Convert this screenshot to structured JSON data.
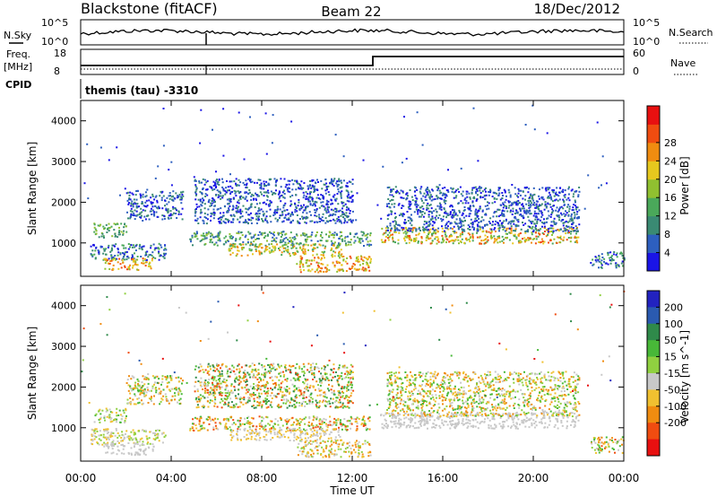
{
  "header": {
    "title": "Blackstone (fitACF)",
    "beam": "Beam 22",
    "date": "18/Dec/2012"
  },
  "top_panels": {
    "noise": {
      "left_label": "N.Sky",
      "right_label": "N.Search",
      "left_ticks": [
        "10^5",
        "10^0"
      ],
      "right_ticks": [
        "10^5",
        "10^0"
      ]
    },
    "frequency": {
      "left_label": "Freq.",
      "left_unit": "[MHz]",
      "right_label": "Nave",
      "left_ticks": [
        "18",
        "8"
      ],
      "right_ticks": [
        "60",
        "0"
      ]
    },
    "cpid": {
      "label": "CPID",
      "program": "themis (tau) -3310"
    }
  },
  "chart_data": [
    {
      "type": "heatmap",
      "panel": "power",
      "ylabel": "Slant Range [km]",
      "xlabel": "",
      "ylim": [
        180,
        4500
      ],
      "yticks": [
        1000,
        2000,
        3000,
        4000
      ],
      "xticks": [
        "00:00",
        "04:00",
        "08:00",
        "12:00",
        "16:00",
        "20:00",
        "00:00"
      ],
      "xlim_hours": [
        0,
        24
      ],
      "colorbar": {
        "label": "Power [dB]",
        "ticks": [
          "4",
          "8",
          "12",
          "16",
          "20",
          "24",
          "28"
        ],
        "colors": [
          "#1a14e6",
          "#2d5fbf",
          "#3a8a73",
          "#4aa85a",
          "#90c030",
          "#e6c81e",
          "#f08c10",
          "#f04c10",
          "#e81010"
        ]
      },
      "scatter_regions": [
        {
          "t": [
            0.5,
            2.0
          ],
          "r": [
            1150,
            1500
          ],
          "v": [
            2,
            4
          ]
        },
        {
          "t": [
            0.4,
            3.8
          ],
          "r": [
            600,
            1000
          ],
          "v": [
            0,
            3
          ]
        },
        {
          "t": [
            1.0,
            3.2
          ],
          "r": [
            350,
            650
          ],
          "v": [
            4,
            7
          ]
        },
        {
          "t": [
            2.0,
            4.5
          ],
          "r": [
            1600,
            2300
          ],
          "v": [
            0,
            2
          ]
        },
        {
          "t": [
            4.8,
            12.8
          ],
          "r": [
            950,
            1300
          ],
          "v": [
            1,
            4
          ]
        },
        {
          "t": [
            6.5,
            11.5
          ],
          "r": [
            700,
            1000
          ],
          "v": [
            3,
            6
          ]
        },
        {
          "t": [
            9.5,
            12.8
          ],
          "r": [
            300,
            700
          ],
          "v": [
            4,
            7
          ]
        },
        {
          "t": [
            5.0,
            12.0
          ],
          "r": [
            1500,
            2600
          ],
          "v": [
            0,
            2
          ]
        },
        {
          "t": [
            13.2,
            22.0
          ],
          "r": [
            1000,
            1400
          ],
          "v": [
            3,
            7
          ]
        },
        {
          "t": [
            13.5,
            22.0
          ],
          "r": [
            1300,
            2400
          ],
          "v": [
            0,
            2
          ]
        },
        {
          "t": [
            22.5,
            24.0
          ],
          "r": [
            400,
            800
          ],
          "v": [
            0,
            3
          ]
        },
        {
          "t": [
            0.0,
            24.0
          ],
          "r": [
            1500,
            4400
          ],
          "v": [
            0,
            1
          ]
        }
      ]
    },
    {
      "type": "heatmap",
      "panel": "velocity",
      "ylabel": "Slant Range [km]",
      "xlabel": "Time UT",
      "ylim": [
        180,
        4500
      ],
      "yticks": [
        1000,
        2000,
        3000,
        4000
      ],
      "xticks": [
        "00:00",
        "04:00",
        "08:00",
        "12:00",
        "16:00",
        "20:00",
        "00:00"
      ],
      "xlim_hours": [
        0,
        24
      ],
      "colorbar": {
        "label": "Velocity [m s^-1]",
        "ticks": [
          "200",
          "100",
          "50",
          "15",
          "-15",
          "-50",
          "-100",
          "-200"
        ],
        "colors": [
          "#2222c0",
          "#2a5ab0",
          "#2f8a4a",
          "#48b838",
          "#90d040",
          "#c8c8c8",
          "#f0c030",
          "#f08c10",
          "#f04c10",
          "#e81010"
        ]
      },
      "scatter_regions": [
        {
          "t": [
            0.5,
            2.0
          ],
          "r": [
            1150,
            1500
          ],
          "v": [
            3,
            6
          ]
        },
        {
          "t": [
            0.4,
            3.8
          ],
          "r": [
            600,
            1000
          ],
          "v": [
            4,
            6
          ]
        },
        {
          "t": [
            1.0,
            3.2
          ],
          "r": [
            350,
            650
          ],
          "v": [
            5,
            5
          ]
        },
        {
          "t": [
            2.0,
            4.5
          ],
          "r": [
            1600,
            2300
          ],
          "v": [
            3,
            7
          ]
        },
        {
          "t": [
            4.8,
            12.8
          ],
          "r": [
            950,
            1300
          ],
          "v": [
            3,
            8
          ]
        },
        {
          "t": [
            6.5,
            11.5
          ],
          "r": [
            700,
            1000
          ],
          "v": [
            5,
            6
          ]
        },
        {
          "t": [
            9.5,
            12.8
          ],
          "r": [
            300,
            700
          ],
          "v": [
            4,
            7
          ]
        },
        {
          "t": [
            5.0,
            12.0
          ],
          "r": [
            1500,
            2600
          ],
          "v": [
            2,
            8
          ]
        },
        {
          "t": [
            13.2,
            22.0
          ],
          "r": [
            1000,
            1400
          ],
          "v": [
            5,
            5
          ]
        },
        {
          "t": [
            13.5,
            22.0
          ],
          "r": [
            1300,
            2400
          ],
          "v": [
            3,
            7
          ]
        },
        {
          "t": [
            22.5,
            24.0
          ],
          "r": [
            400,
            800
          ],
          "v": [
            3,
            8
          ]
        },
        {
          "t": [
            0.0,
            24.0
          ],
          "r": [
            1500,
            4400
          ],
          "v": [
            0,
            9
          ]
        }
      ]
    }
  ]
}
